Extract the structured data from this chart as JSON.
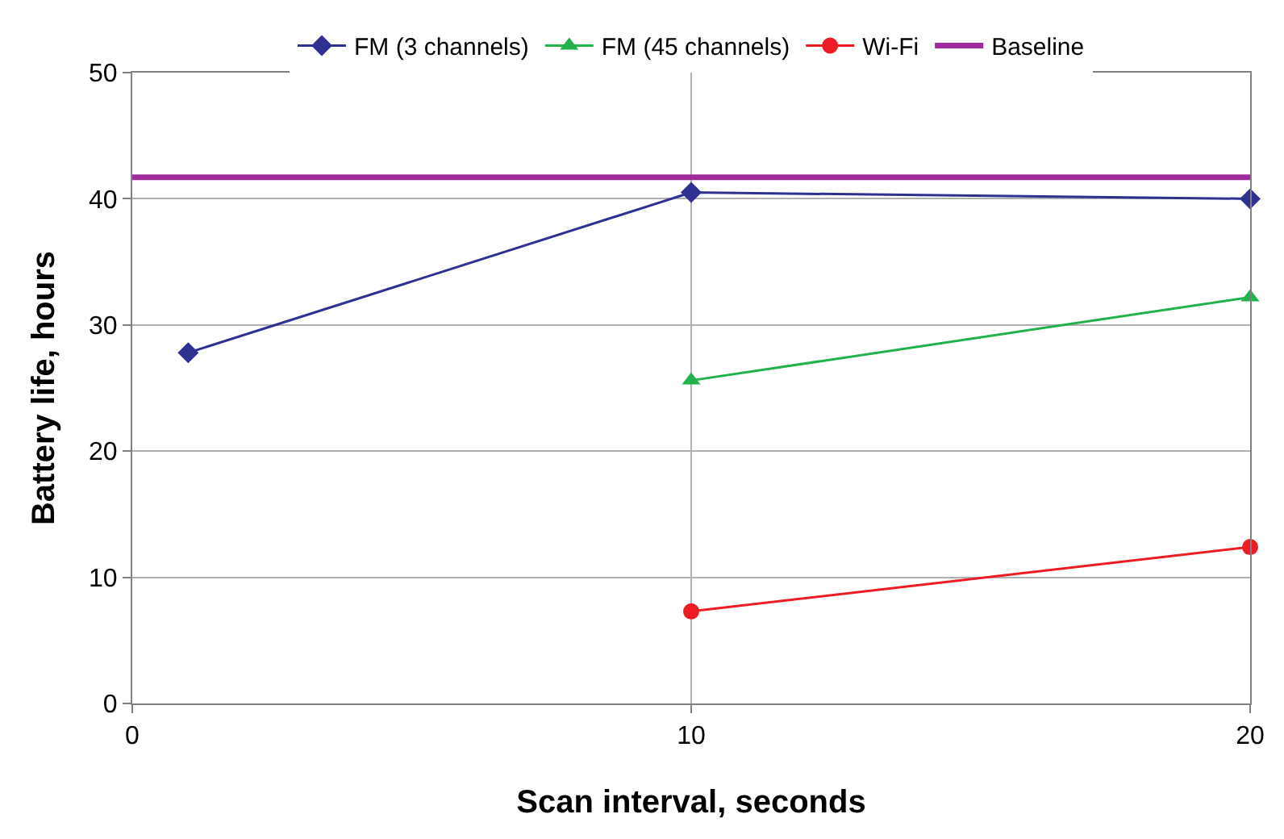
{
  "chart_data": {
    "type": "line",
    "xlabel": "Scan interval, seconds",
    "ylabel": "Battery life, hours",
    "xlim": [
      0,
      20
    ],
    "xticks": [
      0,
      10,
      20
    ],
    "ylim": [
      0,
      50
    ],
    "yticks": [
      0,
      10,
      20,
      30,
      40,
      50
    ],
    "grid": true,
    "legend": "top",
    "series": [
      {
        "name": "FM (3 channels)",
        "color": "#2e3192",
        "x": [
          1,
          10,
          20
        ],
        "values": [
          27.8,
          40.5,
          40.0
        ],
        "marker": "diamond"
      },
      {
        "name": "FM (45 channels)",
        "color": "#22b24c",
        "x": [
          10,
          20
        ],
        "values": [
          25.6,
          32.2
        ],
        "marker": "triangle"
      },
      {
        "name": "Wi-Fi",
        "color": "#ed1c24",
        "x": [
          10,
          20
        ],
        "values": [
          7.3,
          12.4
        ],
        "marker": "circle"
      },
      {
        "name": "Baseline",
        "color": "#9e2a9c",
        "x": [
          0,
          20
        ],
        "values": [
          41.7,
          41.7
        ],
        "marker": "none"
      }
    ]
  }
}
